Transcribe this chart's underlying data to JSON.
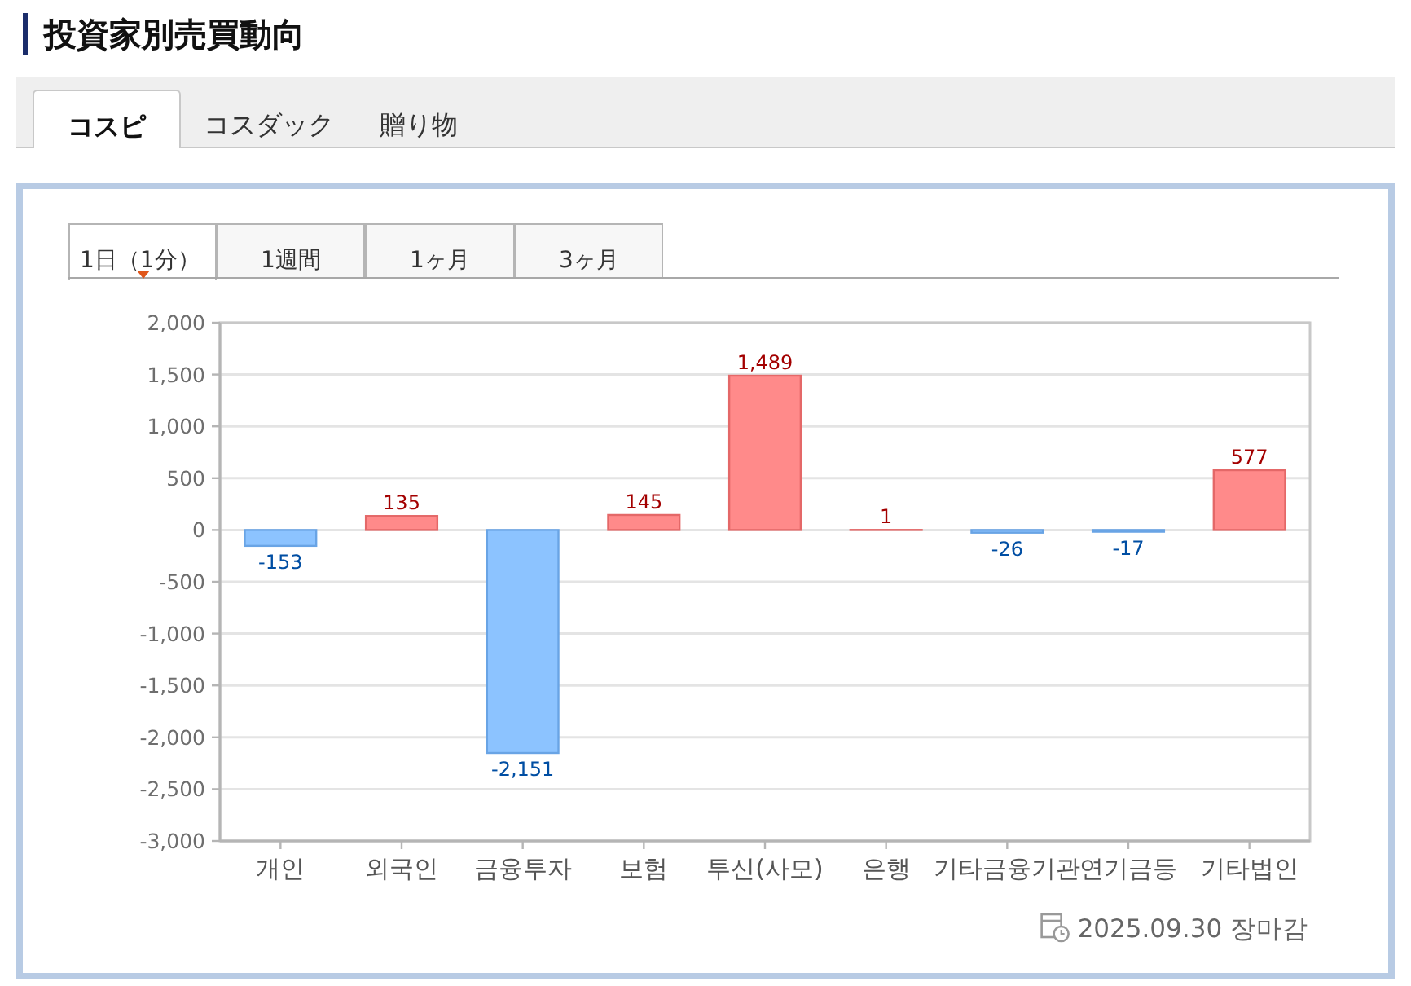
{
  "chart_data": {
    "type": "bar",
    "title": "投資家別売買動向",
    "categories": [
      "개인",
      "외국인",
      "금융투자",
      "보험",
      "투신(사모)",
      "은행",
      "기타금융기관",
      "연기금등",
      "기타법인"
    ],
    "values": [
      -153,
      135,
      -2151,
      145,
      1489,
      1,
      -26,
      -17,
      577
    ],
    "colors": [
      "#8cc3ff",
      "#ff8a8a",
      "#8cc3ff",
      "#ff8a8a",
      "#ff8a8a",
      "#ff8a8a",
      "#8cc3ff",
      "#8cc3ff",
      "#ff8a8a"
    ],
    "value_labels": [
      "-153",
      "135",
      "-2,151",
      "145",
      "1,489",
      "1",
      "-26",
      "-17",
      "577"
    ],
    "ylim": [
      -3000,
      2000
    ],
    "yticks": [
      {
        "value": -3000,
        "label": "-3,000"
      },
      {
        "value": -2500,
        "label": "-2,500"
      },
      {
        "value": -2000,
        "label": "-2,000"
      },
      {
        "value": -1500,
        "label": "-1,500"
      },
      {
        "value": -1000,
        "label": "-1,000"
      },
      -500,
      0,
      500,
      {
        "value": 1000,
        "label": "1,000"
      },
      {
        "value": 1500,
        "label": "1,500"
      },
      {
        "value": 2000,
        "label": "2,000"
      }
    ],
    "grid": "y",
    "annotations": [
      "コスピ",
      "コスダック",
      "贈り物",
      "1日（1分）",
      "1週間",
      "1ヶ月",
      "3ヶ月",
      "2025.09.30 장마감"
    ]
  }
}
